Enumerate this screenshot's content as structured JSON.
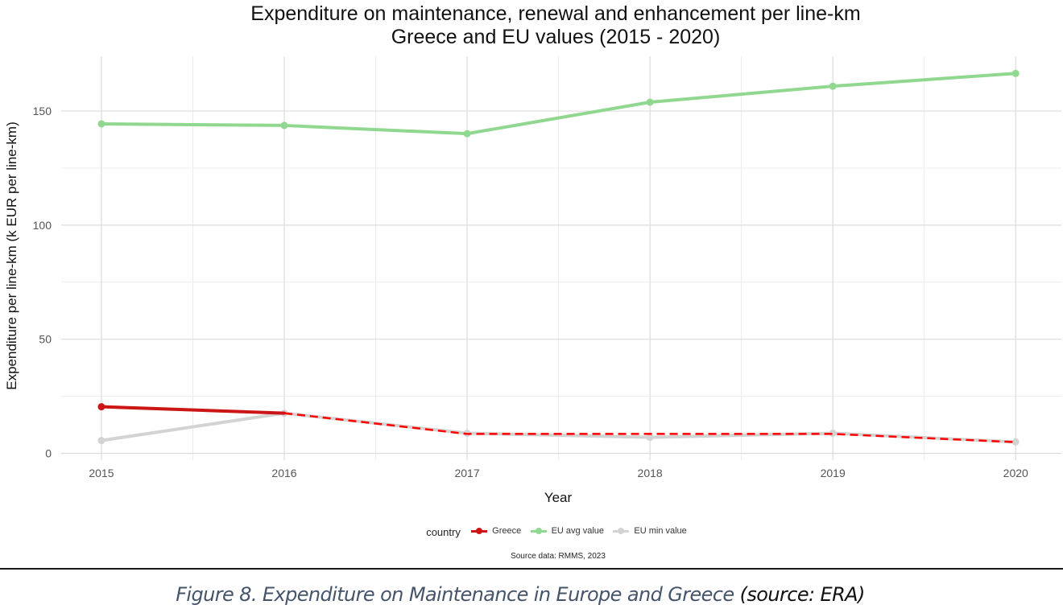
{
  "chart_data": {
    "type": "line",
    "title": "Expenditure on maintenance, renewal and enhancement per line-km",
    "subtitle": "Greece and EU values (2015 - 2020)",
    "xlabel": "Year",
    "ylabel": "Expenditure per line-km (k EUR per line-km)",
    "x": [
      2015,
      2016,
      2017,
      2018,
      2019,
      2020
    ],
    "x_tick_labels": [
      "2015",
      "2016",
      "2017",
      "2018",
      "2019",
      "2020"
    ],
    "y_tick_values": [
      0,
      50,
      100,
      150
    ],
    "y_tick_labels": [
      "0",
      "50",
      "100",
      "150"
    ],
    "xlim": [
      2014.78,
      2020.25
    ],
    "ylim": [
      -3,
      174
    ],
    "grid": true,
    "legend": {
      "title": "country",
      "placement": "bottom"
    },
    "series": [
      {
        "name": "EU min value",
        "color": "#d3d3d3",
        "style": "solid",
        "values": [
          5.6,
          17.6,
          8.8,
          7.0,
          8.8,
          5.0
        ]
      },
      {
        "name": "EU avg value",
        "color": "#90d890",
        "style": "solid",
        "values": [
          144.4,
          143.7,
          140.1,
          153.9,
          160.9,
          166.5
        ]
      },
      {
        "name": "Greece",
        "color": "#cc1515",
        "dashed_color": "#ff0000",
        "style": "solid-then-dashed",
        "solid_until_index": 1,
        "values": [
          20.4,
          17.6,
          8.5,
          8.5,
          8.5,
          4.9
        ]
      }
    ],
    "source_note": "Source data: RMMS, 2023"
  },
  "legend_items": [
    {
      "label": "Greece",
      "color": "#cc1515"
    },
    {
      "label": "EU avg value",
      "color": "#90d890"
    },
    {
      "label": "EU min value",
      "color": "#d3d3d3"
    }
  ],
  "caption": {
    "main": "Figure 8. Expenditure on Maintenance in Europe and Greece",
    "source": " (source: ERA)"
  }
}
